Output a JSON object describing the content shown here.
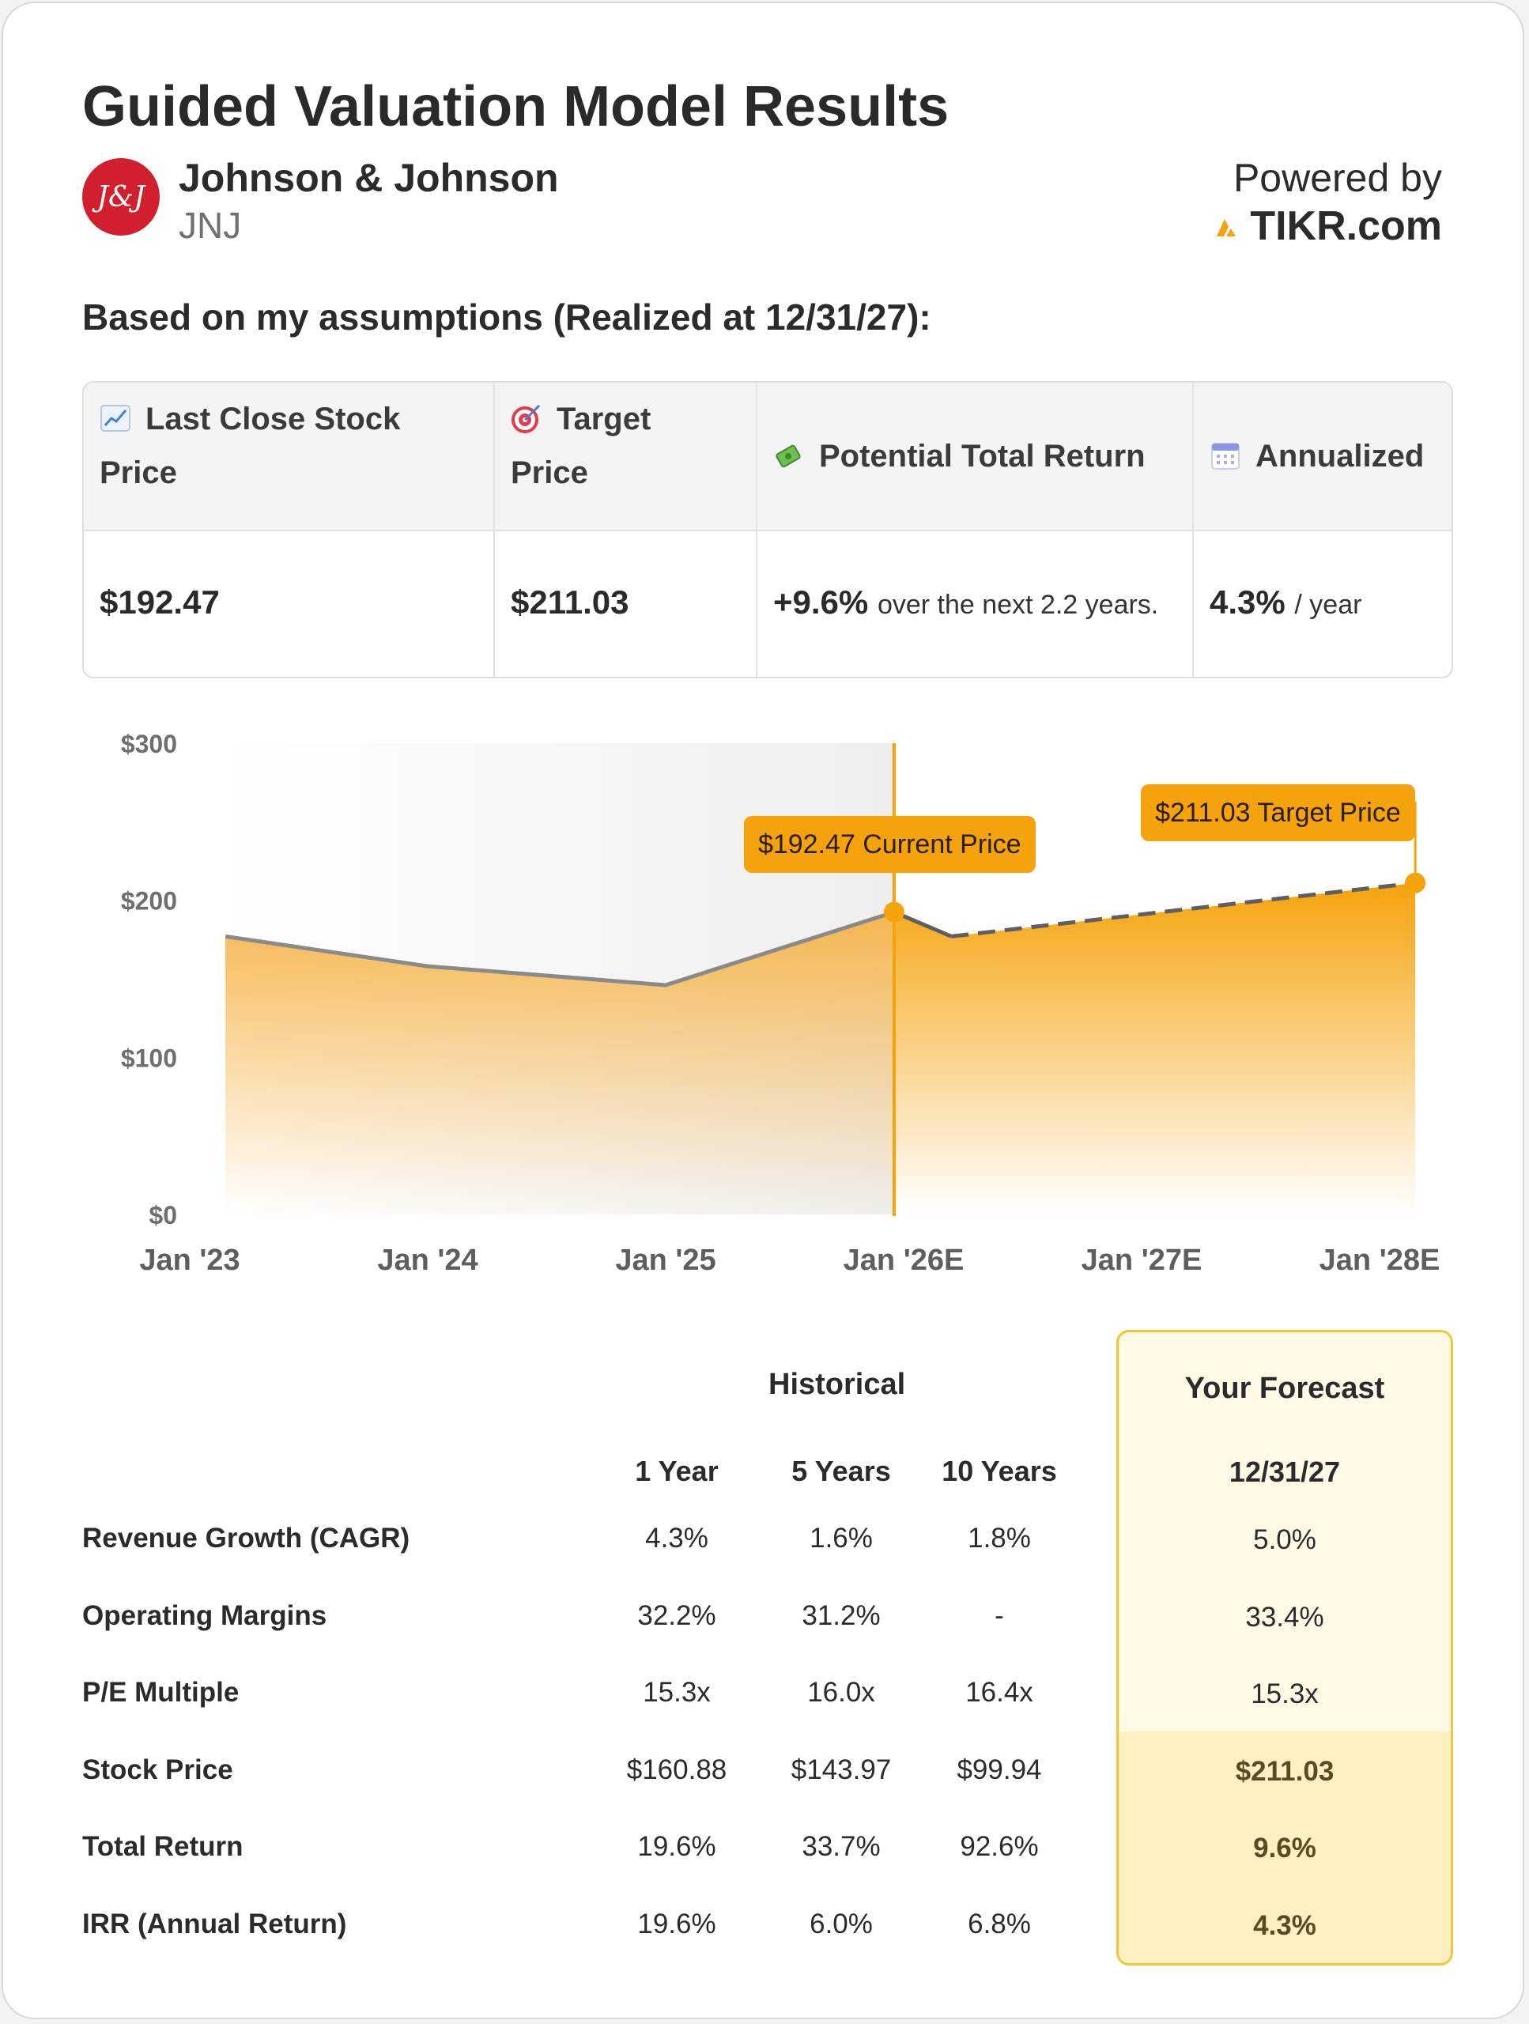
{
  "header": {
    "title": "Guided Valuation Model Results",
    "company": "Johnson & Johnson",
    "ticker": "JNJ",
    "logo_text": "J&J",
    "powered_by": "Powered by",
    "brand": "TIKR.com"
  },
  "subtitle": "Based on my assumptions (Realized at 12/31/27):",
  "summary": {
    "headers": [
      {
        "icon": "chart-increasing-icon",
        "label": "Last Close Stock Price"
      },
      {
        "icon": "target-icon",
        "label": "Target Price"
      },
      {
        "icon": "money-with-wings-icon",
        "label": "Potential Total Return"
      },
      {
        "icon": "calendar-icon",
        "label": "Annualized"
      }
    ],
    "last_close": "$192.47",
    "target_price": "$211.03",
    "total_return": "+9.6%",
    "total_return_note": "over the next 2.2 years.",
    "annualized": "4.3%",
    "annualized_unit": "/ year"
  },
  "chart_data": {
    "type": "area",
    "x": [
      "Jan '23",
      "Jan '24",
      "Jan '25",
      "Jan '26E",
      "Jan '27E",
      "Jan '28E"
    ],
    "y_ticks": [
      "$300",
      "$200",
      "$100",
      "$0"
    ],
    "ylim": [
      0,
      300
    ],
    "historical": [
      {
        "x": 0.15,
        "y": 177
      },
      {
        "x": 1.0,
        "y": 158
      },
      {
        "x": 2.0,
        "y": 146
      },
      {
        "x": 2.96,
        "y": 192.47
      }
    ],
    "forecast": [
      {
        "x": 2.96,
        "y": 192.47
      },
      {
        "x": 3.2,
        "y": 177
      },
      {
        "x": 4.0,
        "y": 191
      },
      {
        "x": 5.15,
        "y": 211.03
      }
    ],
    "current_label": "$192.47 Current Price",
    "target_label": "$211.03 Target Price",
    "colors": {
      "accent": "#f5a30d",
      "history_line": "#8a8a8a",
      "forecast_line": "#5f5f5f"
    }
  },
  "metrics": {
    "historical_label": "Historical",
    "forecast_label": "Your Forecast",
    "forecast_date": "12/31/27",
    "columns": [
      "1 Year",
      "5 Years",
      "10 Years"
    ],
    "rows": [
      {
        "label": "Revenue Growth (CAGR)",
        "values": [
          "4.3%",
          "1.6%",
          "1.8%"
        ],
        "forecast": "5.0%"
      },
      {
        "label": "Operating Margins",
        "values": [
          "32.2%",
          "31.2%",
          "-"
        ],
        "forecast": "33.4%"
      },
      {
        "label": "P/E Multiple",
        "values": [
          "15.3x",
          "16.0x",
          "16.4x"
        ],
        "forecast": "15.3x"
      },
      {
        "label": "Stock Price",
        "values": [
          "$160.88",
          "$143.97",
          "$99.94"
        ],
        "forecast": "$211.03"
      },
      {
        "label": "Total Return",
        "values": [
          "19.6%",
          "33.7%",
          "92.6%"
        ],
        "forecast": "9.6%"
      },
      {
        "label": "IRR (Annual Return)",
        "values": [
          "19.6%",
          "6.0%",
          "6.8%"
        ],
        "forecast": "4.3%"
      }
    ]
  }
}
